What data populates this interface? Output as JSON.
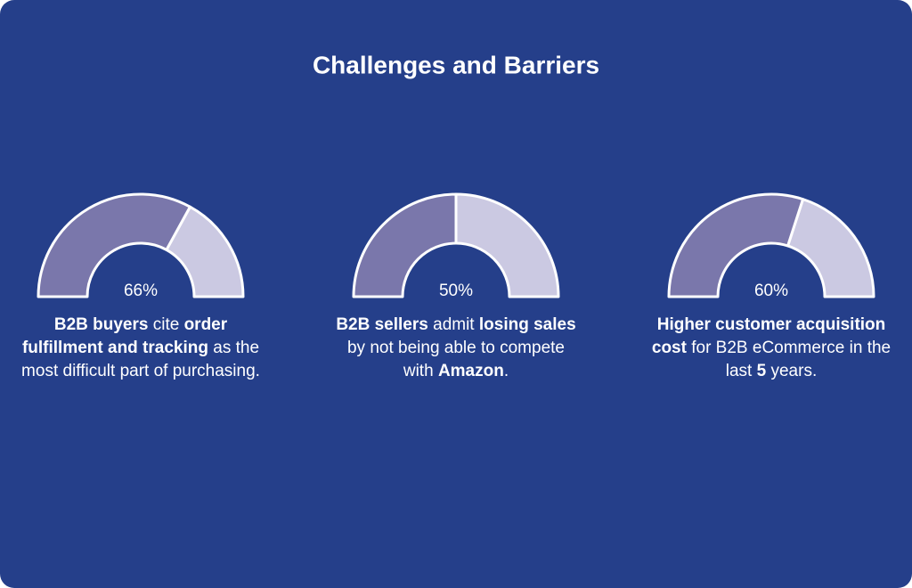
{
  "header": {
    "title": "Challenges and Barriers"
  },
  "style": {
    "background": "#253f8a",
    "filled_color": "#7a77ab",
    "remainder_color": "#cbc9e2",
    "outline_color": "#ffffff"
  },
  "chart_data": [
    {
      "type": "gauge",
      "values": [
        66
      ],
      "value_labels": [
        "66%"
      ],
      "ylim": [
        0,
        100
      ],
      "caption": [
        {
          "text": "B2B buyers",
          "bold": true
        },
        {
          "text": " cite ",
          "bold": false
        },
        {
          "text": "order fulfillment and tracking",
          "bold": true
        },
        {
          "text": " as the most difficult part of purchasing.",
          "bold": false
        }
      ]
    },
    {
      "type": "gauge",
      "values": [
        50
      ],
      "value_labels": [
        "50%"
      ],
      "ylim": [
        0,
        100
      ],
      "caption": [
        {
          "text": "B2B sellers",
          "bold": true
        },
        {
          "text": " admit ",
          "bold": false
        },
        {
          "text": "losing sales",
          "bold": true
        },
        {
          "text": " by not being able to compete with ",
          "bold": false
        },
        {
          "text": "Amazon",
          "bold": true
        },
        {
          "text": ".",
          "bold": false
        }
      ]
    },
    {
      "type": "gauge",
      "values": [
        60
      ],
      "value_labels": [
        "60%"
      ],
      "ylim": [
        0,
        100
      ],
      "caption": [
        {
          "text": "Higher customer acquisition cost",
          "bold": true
        },
        {
          "text": " for B2B eCommerce in the last ",
          "bold": false
        },
        {
          "text": "5",
          "bold": true
        },
        {
          "text": " years.",
          "bold": false
        }
      ]
    }
  ]
}
